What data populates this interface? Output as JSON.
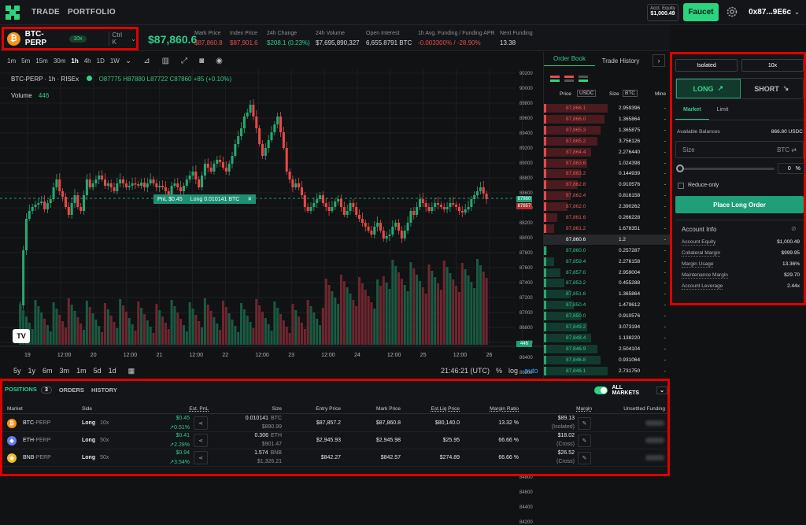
{
  "nav": {
    "trade": "TRADE",
    "portfolio": "PORTFOLIO"
  },
  "account": {
    "equity_label": "Acct. Equity",
    "equity_value": "$1,000.49",
    "faucet": "Faucet",
    "wallet": "0x87...9E6c"
  },
  "market": {
    "name": "BTC-PERP",
    "leverage": "10x",
    "shortcut": "Ctrl K",
    "coin_glyph": "₿",
    "last_price": "$87,860.6"
  },
  "stats": [
    {
      "label": "Mark Price",
      "value": "$87,860.8",
      "color": "#e84c4c"
    },
    {
      "label": "Index Price",
      "value": "$87,901.6",
      "color": "#e84c4c"
    },
    {
      "label": "24h Change",
      "value": "$208.1 (0.23%)",
      "color": "#2ecc8a"
    },
    {
      "label": "24h Volume",
      "value": "$7,695,890,327",
      "color": "#d8dade"
    },
    {
      "label": "Open Interest",
      "value": "6,655.8791 BTC",
      "color": "#d8dade"
    },
    {
      "label": "1h Avg. Funding / Funding APR",
      "value": "-0.003300% / -28.90%",
      "color": "#e84c4c"
    },
    {
      "label": "Next Funding",
      "value": "13.38",
      "color": "#d8dade"
    }
  ],
  "chart_tools": {
    "intervals": [
      "1m",
      "5m",
      "15m",
      "30m",
      "1h",
      "4h",
      "1D",
      "1W"
    ],
    "active": "1h"
  },
  "chart": {
    "legend": "BTC-PERP · 1h · RISEx",
    "open": "O87775",
    "high": "H87880",
    "low": "L87722",
    "close": "C87860",
    "change": "+85 (+0.10%)",
    "volume_label": "Volume",
    "volume_value": "446",
    "pnl_label": "PnL $0.45",
    "position_label": "Long 0.010141 BTC",
    "price_tags": {
      "mark": "87860",
      "index": "87857",
      "volume": "446"
    },
    "ranges": [
      "5y",
      "1y",
      "6m",
      "3m",
      "1m",
      "5d",
      "1d"
    ],
    "time": "21:46:21 (UTC)",
    "pct": "%",
    "log": "log",
    "auto": "auto"
  },
  "chart_data": {
    "type": "candlestick",
    "ylim": [
      84000,
      90200
    ],
    "y_ticks": [
      "90200",
      "90000",
      "89800",
      "89600",
      "89400",
      "89200",
      "89000",
      "88800",
      "88600",
      "88400",
      "88200",
      "88000",
      "87800",
      "87600",
      "87400",
      "87200",
      "87000",
      "86800",
      "86600",
      "86400",
      "86200",
      "86000",
      "85800",
      "85600",
      "85400",
      "85200",
      "85000",
      "84800",
      "84600",
      "84400",
      "84200"
    ],
    "x_ticks": [
      "19",
      "12:00",
      "20",
      "12:00",
      "21",
      "12:00",
      "22",
      "12:00",
      "23",
      "12:00",
      "24",
      "12:00",
      "25",
      "12:00",
      "26"
    ]
  },
  "orderbook": {
    "tabs": [
      "Order Book",
      "Trade History"
    ],
    "headers": {
      "price": "Price",
      "price_unit": "USDC",
      "size": "Size",
      "size_unit": "BTC",
      "mine": "Mine"
    },
    "asks": [
      {
        "price": "87,866.1",
        "size": "2.959396",
        "depth": 0.95
      },
      {
        "price": "87,866.0",
        "size": "1.365864",
        "depth": 0.9
      },
      {
        "price": "87,865.3",
        "size": "1.365875",
        "depth": 0.85
      },
      {
        "price": "87,865.2",
        "size": "3.756126",
        "depth": 0.8
      },
      {
        "price": "87,864.4",
        "size": "2.276440",
        "depth": 0.7
      },
      {
        "price": "87,863.6",
        "size": "1.024398",
        "depth": 0.65
      },
      {
        "price": "87,863.2",
        "size": "0.144939",
        "depth": 0.55
      },
      {
        "price": "87,862.8",
        "size": "0.910576",
        "depth": 0.5
      },
      {
        "price": "87,862.4",
        "size": "0.816158",
        "depth": 0.4
      },
      {
        "price": "87,862.0",
        "size": "2.390262",
        "depth": 0.35
      },
      {
        "price": "87,861.6",
        "size": "0.266228",
        "depth": 0.2
      },
      {
        "price": "87,861.2",
        "size": "1.678351",
        "depth": 0.15
      }
    ],
    "mid": {
      "price": "87,860.6",
      "size": "1.2"
    },
    "bids": [
      {
        "price": "87,860.0",
        "size": "0.257287",
        "depth": 0.05
      },
      {
        "price": "87,859.4",
        "size": "2.276158",
        "depth": 0.15
      },
      {
        "price": "87,857.0",
        "size": "2.959004",
        "depth": 0.25
      },
      {
        "price": "87,853.2",
        "size": "0.455288",
        "depth": 0.3
      },
      {
        "price": "87,851.6",
        "size": "1.365864",
        "depth": 0.4
      },
      {
        "price": "87,850.4",
        "size": "1.479612",
        "depth": 0.45
      },
      {
        "price": "87,850.0",
        "size": "0.910576",
        "depth": 0.55
      },
      {
        "price": "87,849.2",
        "size": "3.073194",
        "depth": 0.65
      },
      {
        "price": "87,848.4",
        "size": "1.138220",
        "depth": 0.7
      },
      {
        "price": "87,846.9",
        "size": "2.504104",
        "depth": 0.8
      },
      {
        "price": "87,846.8",
        "size": "0.931064",
        "depth": 0.85
      },
      {
        "price": "87,846.1",
        "size": "2.731750",
        "depth": 0.95
      }
    ],
    "mine": "-"
  },
  "trade": {
    "margin_mode": "Isolated",
    "leverage": "10x",
    "long": "LONG",
    "short": "SHORT",
    "order_types": [
      "Market",
      "Limit"
    ],
    "available_label": "Available Balances",
    "available_value": "866.80 USDC",
    "size_placeholder": "Size",
    "size_unit": "BTC",
    "pct": "0",
    "pct_sign": "%",
    "reduce_only": "Reduce-only",
    "place": "Place Long Order",
    "account_info": "Account Info",
    "rows": [
      {
        "label": "Account Equity",
        "value": "$1,000.49"
      },
      {
        "label": "Collateral Margin",
        "value": "$999.95"
      },
      {
        "label": "Margin Usage",
        "value": "13.36%"
      },
      {
        "label": "Maintenance Margin",
        "value": "$29.70"
      },
      {
        "label": "Account Leverage",
        "value": "2.44x"
      }
    ]
  },
  "positions": {
    "tabs": [
      "POSITIONS",
      "ORDERS",
      "HISTORY"
    ],
    "count": "3",
    "all_markets": "ALL MARKETS",
    "headers": [
      "Market",
      "Side",
      "Est. PnL",
      "Size",
      "Entry Price",
      "Mark Price",
      "Est.Liq Price",
      "Margin Ratio",
      "Margin",
      "Unsettled Funding"
    ],
    "rows": [
      {
        "base": "BTC",
        "suffix": "-PERP",
        "glyph": "₿",
        "color": "#f7931a",
        "side": "Long",
        "lev": "10x",
        "pnl": "$0.45",
        "pnl_pct": "↗0.51%",
        "size": "0.010141",
        "size_unit": "BTC",
        "size_usd": "$890.99",
        "entry": "$87,857.2",
        "mark": "$87,860.8",
        "liq": "$80,140.0",
        "ratio": "13.32 %",
        "margin": "$89.13",
        "mode": "(Isolated)"
      },
      {
        "base": "ETH",
        "suffix": "-PERP",
        "glyph": "◆",
        "color": "#627eea",
        "side": "Long",
        "lev": "50x",
        "pnl": "$0.41",
        "pnl_pct": "↗2.28%",
        "size": "0.306",
        "size_unit": "ETH",
        "size_usd": "$901.47",
        "entry": "$2,945.93",
        "mark": "$2,945.98",
        "liq": "$25.95",
        "ratio": "66.66 %",
        "margin": "$18.02",
        "mode": "(Cross)"
      },
      {
        "base": "BNB",
        "suffix": "-PERP",
        "glyph": "◈",
        "color": "#f3ba2f",
        "side": "Long",
        "lev": "50x",
        "pnl": "$0.94",
        "pnl_pct": "↗3.54%",
        "size": "1.574",
        "size_unit": "BNB",
        "size_usd": "$1,326.21",
        "entry": "$842.27",
        "mark": "$842.57",
        "liq": "$274.89",
        "ratio": "66.66 %",
        "margin": "$26.52",
        "mode": "(Cross)"
      }
    ]
  }
}
